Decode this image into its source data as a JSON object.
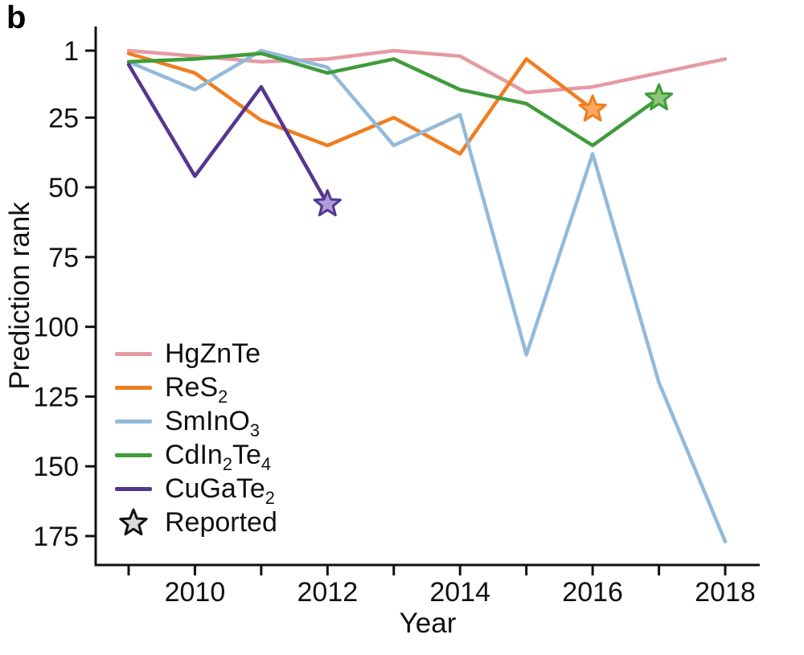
{
  "panel_label": "b",
  "chart_data": {
    "type": "line",
    "title": "",
    "xlabel": "Year",
    "ylabel": "Prediction rank",
    "axis_color": "#111111",
    "y_axis_inverted": true,
    "y_ticks": [
      1,
      25,
      50,
      75,
      100,
      125,
      150,
      175
    ],
    "x_tick_years": [
      2009,
      2010,
      2011,
      2012,
      2013,
      2014,
      2015,
      2016,
      2017,
      2018
    ],
    "x_labeled_years": [
      2010,
      2012,
      2014,
      2016,
      2018
    ],
    "xlim": [
      2009,
      2018
    ],
    "ylim_ranks": [
      1,
      180
    ],
    "grid": false,
    "legend_position": "lower-left-inside",
    "series": [
      {
        "name": "HgZnTe",
        "label_segments": [
          {
            "t": "HgZnTe",
            "sub": false
          }
        ],
        "color": "#e59aa3",
        "years": [
          2009,
          2010,
          2011,
          2012,
          2013,
          2014,
          2015,
          2016,
          2017,
          2018
        ],
        "ranks": [
          1,
          3,
          5,
          4,
          1,
          3,
          16,
          14,
          9,
          4
        ],
        "reported": null
      },
      {
        "name": "ReS2",
        "label_segments": [
          {
            "t": "ReS",
            "sub": false
          },
          {
            "t": "2",
            "sub": true
          }
        ],
        "color": "#f07e21",
        "star_fill": "#f9a85f",
        "years": [
          2009,
          2010,
          2011,
          2012,
          2013,
          2014,
          2015,
          2016
        ],
        "ranks": [
          2,
          9,
          26,
          35,
          25,
          38,
          4,
          22
        ],
        "reported": {
          "year": 2016,
          "rank": 22
        }
      },
      {
        "name": "SmInO3",
        "label_segments": [
          {
            "t": "SmInO",
            "sub": false
          },
          {
            "t": "3",
            "sub": true
          }
        ],
        "color": "#92bada",
        "years": [
          2009,
          2010,
          2011,
          2012,
          2013,
          2014,
          2015,
          2016,
          2017,
          2018
        ],
        "ranks": [
          5,
          15,
          1,
          7,
          35,
          24,
          110,
          38,
          120,
          177
        ],
        "reported": null
      },
      {
        "name": "CdIn2Te4",
        "label_segments": [
          {
            "t": "CdIn",
            "sub": false
          },
          {
            "t": "2",
            "sub": true
          },
          {
            "t": "Te",
            "sub": false
          },
          {
            "t": "4",
            "sub": true
          }
        ],
        "color": "#3f9c3a",
        "star_fill": "#8ec779",
        "years": [
          2009,
          2010,
          2011,
          2012,
          2013,
          2014,
          2015,
          2016,
          2017
        ],
        "ranks": [
          5,
          4,
          2,
          9,
          4,
          15,
          20,
          35,
          18
        ],
        "reported": {
          "year": 2017,
          "rank": 18
        }
      },
      {
        "name": "CuGaTe2",
        "label_segments": [
          {
            "t": "CuGaTe",
            "sub": false
          },
          {
            "t": "2",
            "sub": true
          }
        ],
        "color": "#54368f",
        "star_fill": "#b09cd6",
        "years": [
          2009,
          2010,
          2011,
          2012
        ],
        "ranks": [
          6,
          46,
          14,
          56
        ],
        "reported": {
          "year": 2012,
          "rank": 56
        }
      }
    ],
    "legend": {
      "reported_label": "Reported",
      "reported_star_fill": "#d8d8d8",
      "reported_star_stroke": "#111111"
    }
  }
}
